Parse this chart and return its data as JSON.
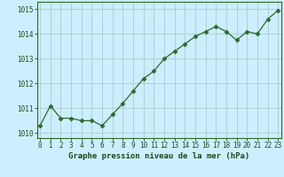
{
  "x": [
    0,
    1,
    2,
    3,
    4,
    5,
    6,
    7,
    8,
    9,
    10,
    11,
    12,
    13,
    14,
    15,
    16,
    17,
    18,
    19,
    20,
    21,
    22,
    23
  ],
  "y": [
    1010.3,
    1011.1,
    1010.6,
    1010.6,
    1010.5,
    1010.5,
    1010.3,
    1010.75,
    1011.2,
    1011.7,
    1012.2,
    1012.5,
    1013.0,
    1013.3,
    1013.6,
    1013.9,
    1014.1,
    1014.3,
    1014.1,
    1013.75,
    1014.1,
    1014.0,
    1014.6,
    1014.95
  ],
  "line_color": "#2d6a2d",
  "marker": "D",
  "marker_size": 2.5,
  "bg_color": "#cceeff",
  "grid_color": "#aacccc",
  "xlabel": "Graphe pression niveau de la mer (hPa)",
  "xlabel_color": "#1a4a1a",
  "xlabel_fontsize": 6.5,
  "tick_color": "#1a4a1a",
  "tick_fontsize": 5.5,
  "ylim": [
    1009.8,
    1015.3
  ],
  "xlim": [
    -0.3,
    23.3
  ],
  "yticks": [
    1010,
    1011,
    1012,
    1013,
    1014,
    1015
  ],
  "xticks": [
    0,
    1,
    2,
    3,
    4,
    5,
    6,
    7,
    8,
    9,
    10,
    11,
    12,
    13,
    14,
    15,
    16,
    17,
    18,
    19,
    20,
    21,
    22,
    23
  ],
  "spine_color": "#2d6a2d",
  "linewidth": 0.9
}
